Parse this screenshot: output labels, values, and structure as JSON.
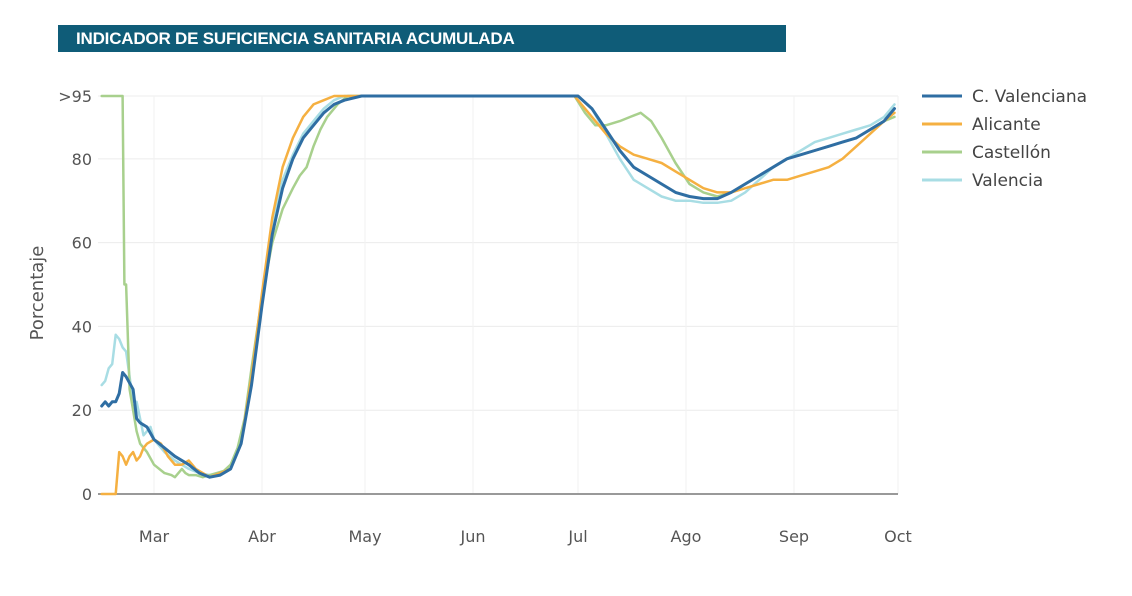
{
  "header": {
    "title": "INDICADOR DE SUFICIENCIA SANITARIA ACUMULADA"
  },
  "chart_data": {
    "type": "line",
    "title": "INDICADOR DE SUFICIENCIA SANITARIA ACUMULADA",
    "xlabel": "",
    "ylabel": "Porcentaje",
    "x_ticks": [
      "Mar",
      "Abr",
      "May",
      "Jun",
      "Jul",
      "Ago",
      "Sep",
      "Oct"
    ],
    "y_ticks": [
      {
        "value": 0,
        "label": "0"
      },
      {
        "value": 20,
        "label": "20"
      },
      {
        "value": 40,
        "label": "40"
      },
      {
        "value": 60,
        "label": "60"
      },
      {
        "value": 80,
        "label": "80"
      },
      {
        "value": 95,
        "label": ">95"
      }
    ],
    "ylim": [
      0,
      95
    ],
    "x_day_range": [
      -15,
      213
    ],
    "grid": true,
    "legend_position": "right",
    "series": [
      {
        "name": "C. Valenciana",
        "color": "#2f6ea3",
        "x": [
          -15,
          -14,
          -13,
          -12,
          -11,
          -10,
          -9,
          -8,
          -6,
          -5,
          -4,
          -2,
          0,
          3,
          6,
          10,
          13,
          16,
          19,
          22,
          25,
          28,
          31,
          34,
          37,
          40,
          43,
          46,
          49,
          52,
          55,
          60,
          70,
          80,
          90,
          100,
          110,
          122,
          126,
          130,
          134,
          138,
          142,
          146,
          150,
          154,
          158,
          162,
          166,
          170,
          174,
          178,
          182,
          186,
          190,
          194,
          198,
          202,
          206,
          210,
          213
        ],
        "y": [
          21,
          22,
          21,
          22,
          22,
          24,
          29,
          28,
          25,
          18,
          17,
          16,
          13,
          11,
          9,
          7,
          5,
          4,
          4.5,
          6,
          12,
          26,
          45,
          62,
          73,
          80,
          85,
          88,
          91,
          93,
          94,
          95,
          95,
          95,
          95,
          95,
          95,
          95,
          92,
          87,
          82,
          78,
          76,
          74,
          72,
          71,
          70.5,
          70.5,
          72,
          74,
          76,
          78,
          80,
          81,
          82,
          83,
          84,
          85,
          87,
          89,
          92
        ]
      },
      {
        "name": "Alicante",
        "color": "#f5b041",
        "x": [
          -15,
          -13,
          -11,
          -10,
          -9,
          -8,
          -7,
          -6,
          -5,
          -4,
          -3,
          -2,
          0,
          2,
          4,
          6,
          8,
          10,
          12,
          14,
          16,
          19,
          22,
          25,
          28,
          31,
          34,
          37,
          40,
          43,
          46,
          49,
          52,
          55,
          60,
          70,
          80,
          90,
          100,
          110,
          121,
          125,
          130,
          134,
          138,
          142,
          146,
          150,
          154,
          158,
          162,
          166,
          170,
          174,
          178,
          182,
          186,
          190,
          194,
          198,
          202,
          206,
          210,
          213
        ],
        "y": [
          0,
          0,
          0,
          10,
          9,
          7,
          9,
          10,
          8,
          9,
          11,
          12,
          13,
          12,
          9,
          7,
          7,
          8,
          6,
          5,
          4,
          5,
          6,
          12,
          28,
          48,
          66,
          78,
          85,
          90,
          93,
          94,
          95,
          95,
          95,
          95,
          95,
          95,
          95,
          95,
          95,
          91,
          86,
          83,
          81,
          80,
          79,
          77,
          75,
          73,
          72,
          72,
          73,
          74,
          75,
          75,
          76,
          77,
          78,
          80,
          83,
          86,
          89,
          91
        ]
      },
      {
        "name": "Castellón",
        "color": "#a8d08d",
        "x": [
          -15,
          -14,
          -13,
          -12,
          -11,
          -10,
          -9,
          -8.5,
          -8,
          -7,
          -6,
          -5,
          -4,
          -2,
          0,
          3,
          5,
          6,
          7,
          8,
          9,
          10,
          12,
          14,
          16,
          18,
          20,
          22,
          24,
          26,
          28,
          31,
          34,
          37,
          40,
          42,
          44,
          46,
          48,
          50,
          53,
          56,
          60,
          70,
          80,
          90,
          100,
          110,
          121,
          124,
          127,
          130,
          134,
          137,
          140,
          143,
          146,
          150,
          154,
          158,
          162,
          166,
          170,
          174,
          178,
          182,
          186,
          190,
          194,
          198,
          202,
          206,
          210,
          213
        ],
        "y": [
          95,
          95,
          95,
          95,
          95,
          95,
          95,
          50,
          50,
          25,
          20,
          15,
          12,
          10,
          7,
          5,
          4.5,
          4,
          5,
          6,
          5,
          4.5,
          4.5,
          4,
          4.5,
          5,
          5.5,
          7,
          11,
          18,
          30,
          47,
          60,
          68,
          73,
          76,
          78,
          83,
          87,
          90,
          93,
          95,
          95,
          95,
          95,
          95,
          95,
          95,
          95,
          91,
          88,
          88,
          89,
          90,
          91,
          89,
          85,
          79,
          74,
          72,
          71,
          72,
          74,
          76,
          78,
          80,
          81,
          82,
          83,
          84,
          85,
          87,
          89,
          90
        ]
      },
      {
        "name": "Valencia",
        "color": "#a8dde4",
        "x": [
          -15,
          -14,
          -13,
          -12,
          -11,
          -10,
          -9,
          -8,
          -7,
          -6,
          -5,
          -4,
          -3,
          -2,
          -1,
          0,
          1,
          3,
          6,
          10,
          13,
          16,
          19,
          22,
          25,
          28,
          31,
          34,
          37,
          40,
          43,
          46,
          49,
          52,
          55,
          60,
          70,
          80,
          90,
          100,
          110,
          122,
          126,
          130,
          134,
          138,
          142,
          146,
          150,
          154,
          158,
          162,
          166,
          170,
          174,
          178,
          182,
          186,
          190,
          194,
          198,
          202,
          206,
          210,
          213
        ],
        "y": [
          26,
          27,
          30,
          31,
          38,
          37,
          35,
          34,
          28,
          22,
          22,
          18,
          14,
          15,
          16,
          13,
          12,
          10,
          8,
          6,
          5,
          4.5,
          5,
          6,
          12,
          27,
          47,
          64,
          75,
          81,
          86,
          89,
          92,
          94,
          95,
          95,
          95,
          95,
          95,
          95,
          95,
          95,
          92,
          86,
          80,
          75,
          73,
          71,
          70,
          70,
          69.5,
          69.5,
          70,
          72,
          75,
          78,
          80,
          82,
          84,
          85,
          86,
          87,
          88,
          90,
          93
        ]
      }
    ]
  }
}
